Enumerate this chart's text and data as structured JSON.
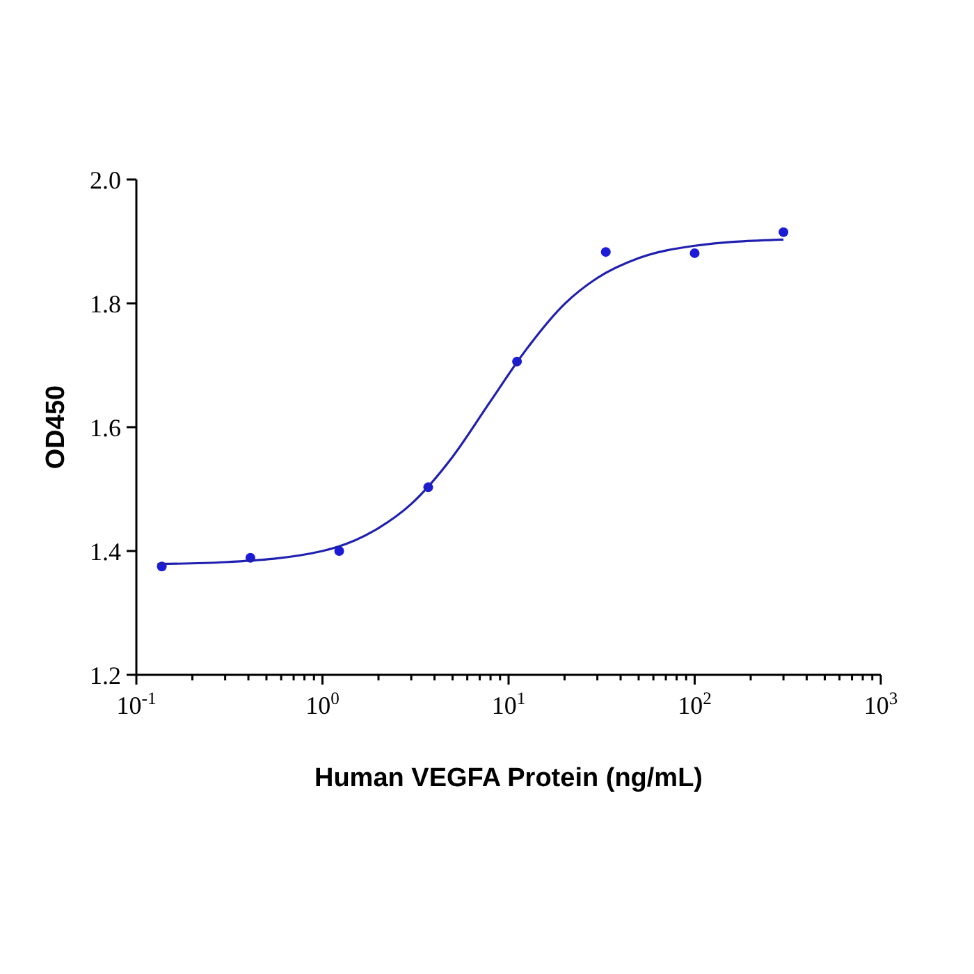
{
  "chart_data": {
    "type": "scatter",
    "xlabel": "Human VEGFA Protein (ng/mL)",
    "ylabel": "OD450",
    "log": "x",
    "xlim": [
      0.1,
      1000
    ],
    "ylim": [
      1.2,
      2.0
    ],
    "xticks": [
      {
        "value": 0.1,
        "label": "10$^{-1}$"
      },
      {
        "value": 0.2,
        "label": null
      },
      {
        "value": 0.3,
        "label": null
      },
      {
        "value": 0.4,
        "label": null
      },
      {
        "value": 0.5,
        "label": null
      },
      {
        "value": 0.6,
        "label": null
      },
      {
        "value": 0.7,
        "label": null
      },
      {
        "value": 0.8,
        "label": null
      },
      {
        "value": 0.9,
        "label": null
      },
      {
        "value": 1,
        "label": "10$^{0}$"
      },
      {
        "value": 2,
        "label": null
      },
      {
        "value": 3,
        "label": null
      },
      {
        "value": 4,
        "label": null
      },
      {
        "value": 5,
        "label": null
      },
      {
        "value": 6,
        "label": null
      },
      {
        "value": 7,
        "label": null
      },
      {
        "value": 8,
        "label": null
      },
      {
        "value": 9,
        "label": null
      },
      {
        "value": 10,
        "label": "10$^{1}$"
      },
      {
        "value": 20,
        "label": null
      },
      {
        "value": 30,
        "label": null
      },
      {
        "value": 40,
        "label": null
      },
      {
        "value": 50,
        "label": null
      },
      {
        "value": 60,
        "label": null
      },
      {
        "value": 70,
        "label": null
      },
      {
        "value": 80,
        "label": null
      },
      {
        "value": 90,
        "label": null
      },
      {
        "value": 100,
        "label": "10$^{2}$"
      },
      {
        "value": 200,
        "label": null
      },
      {
        "value": 300,
        "label": null
      },
      {
        "value": 400,
        "label": null
      },
      {
        "value": 500,
        "label": null
      },
      {
        "value": 600,
        "label": null
      },
      {
        "value": 700,
        "label": null
      },
      {
        "value": 800,
        "label": null
      },
      {
        "value": 900,
        "label": null
      },
      {
        "value": 1000,
        "label": "10$^{3}$"
      }
    ],
    "yticks": [
      1.2,
      1.4,
      1.6,
      1.8,
      {
        "value": 2.0,
        "label": "2.0"
      }
    ],
    "grid": false,
    "marker": "circle",
    "series": [
      {
        "color": "#1c1cd8",
        "x": [
          0.137,
          0.41,
          1.23,
          3.7,
          11.1,
          33.3,
          100,
          300
        ],
        "values": [
          1.375,
          1.389,
          1.4,
          1.503,
          1.706,
          1.883,
          1.881,
          1.915
        ]
      },
      {
        "type": "line",
        "color": "#2020b0",
        "marker": "none",
        "line_style": "solid",
        "x": [
          0.13,
          0.3,
          1,
          2,
          3,
          5,
          8,
          12,
          20,
          30,
          50,
          100,
          300
        ],
        "values": [
          1.379,
          1.382,
          1.4,
          1.437,
          1.476,
          1.552,
          1.642,
          1.719,
          1.799,
          1.841,
          1.873,
          1.893,
          1.903
        ]
      }
    ]
  }
}
